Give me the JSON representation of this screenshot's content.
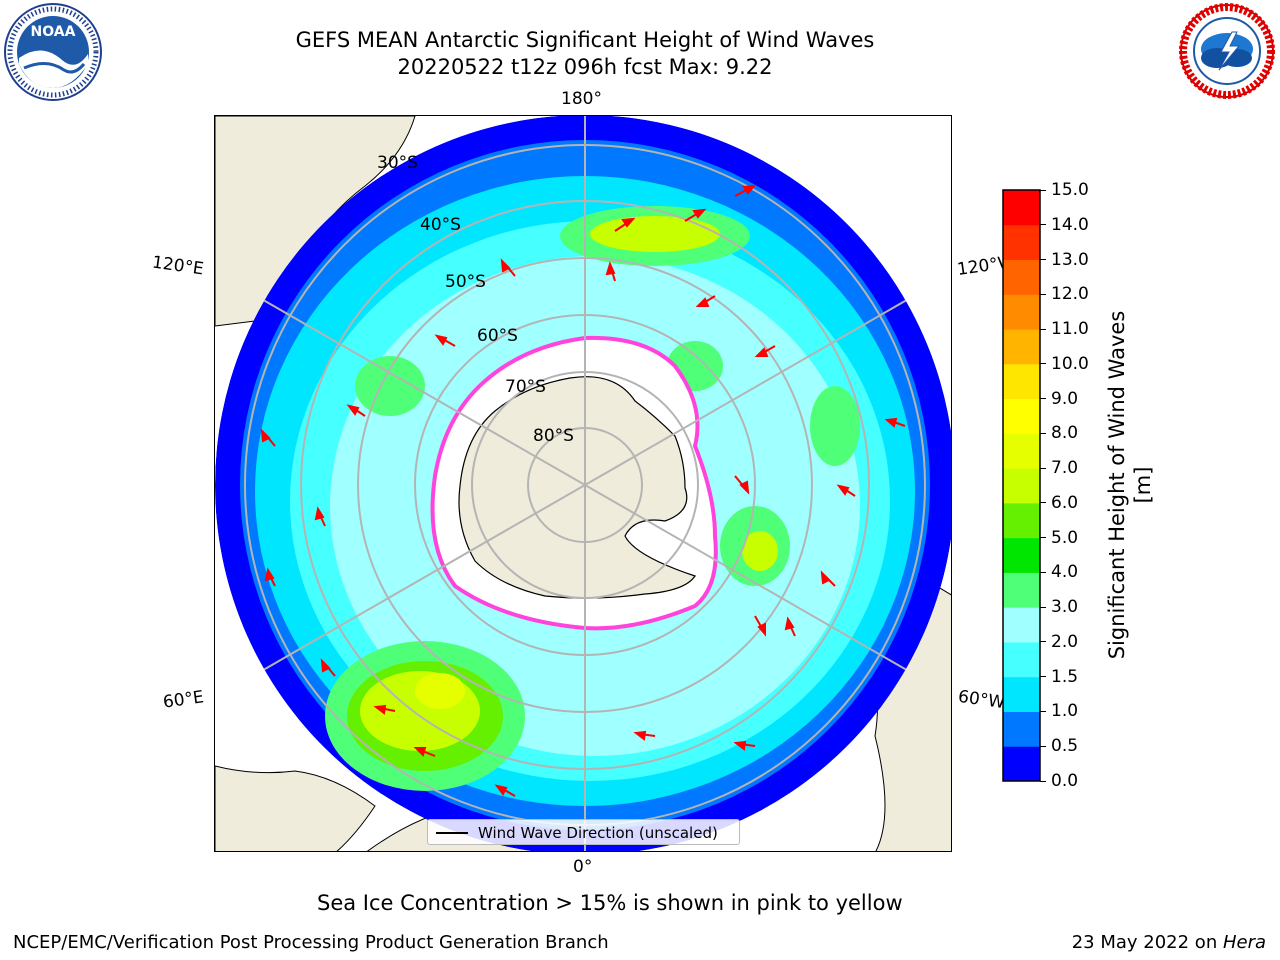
{
  "header": {
    "title_line1": "GEFS MEAN Antarctic Significant Height of Wind Waves",
    "title_line2": "20220522 t12z 096h fcst   Max: 9.22"
  },
  "logos": {
    "left": {
      "text": "NOAA",
      "ring_text": "NATIONAL OCEANIC AND ATMOSPHERIC ADMINISTRATION · U.S. DEPARTMENT OF COMMERCE"
    },
    "right": {
      "ring_text": "NATIONAL WEATHER SERVICE"
    }
  },
  "map": {
    "longitude_labels": {
      "top": "180°",
      "bottom": "0°",
      "upper_left": "120°E",
      "upper_right": "120°W",
      "lower_left": "60°E",
      "lower_right": "60°W"
    },
    "latitude_labels": [
      "30°S",
      "40°S",
      "50°S",
      "60°S",
      "70°S",
      "80°S"
    ],
    "legend_label": "Wind Wave Direction (unscaled)",
    "colors": {
      "land": "#efecdc",
      "ice": "#ffffff",
      "ice_edge": "#ff44dd",
      "arrow": "#ff0000",
      "grid": "#b4b4b4"
    }
  },
  "colorbar": {
    "title": "Significant Height of Wind Waves [m]",
    "ticks": [
      "0.0",
      "0.5",
      "1.0",
      "1.5",
      "2.0",
      "3.0",
      "4.0",
      "5.0",
      "6.0",
      "7.0",
      "8.0",
      "9.0",
      "10.0",
      "11.0",
      "12.0",
      "13.0",
      "14.0",
      "15.0"
    ],
    "colors": [
      "#0000ff",
      "#0078ff",
      "#00e6ff",
      "#46ffff",
      "#a0ffff",
      "#50ff78",
      "#00e600",
      "#64f000",
      "#c8ff00",
      "#e6ff00",
      "#ffff00",
      "#ffe600",
      "#ffb400",
      "#ff8c00",
      "#ff6400",
      "#ff3200",
      "#ff0000"
    ]
  },
  "footer": {
    "note": "Sea Ice Concentration > 15% is shown in pink to yellow",
    "left": "NCEP/EMC/Verification Post Processing Product Generation Branch",
    "right_date": "23 May 2022 on ",
    "right_host": "Hera"
  }
}
